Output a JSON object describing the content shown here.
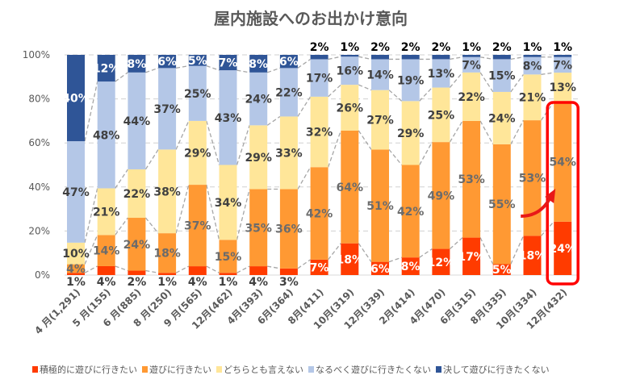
{
  "chart_data": {
    "type": "bar",
    "stacked": "percent",
    "title": "屋内施設へのお出かけ意向",
    "xlabel": "",
    "ylabel": "",
    "ylim": [
      0,
      100
    ],
    "yticks": [
      "0%",
      "20%",
      "40%",
      "60%",
      "80%",
      "100%"
    ],
    "grid": true,
    "legend_position": "bottom",
    "categories": [
      "4 月(1,291)",
      "5 月(155)",
      "6 月(885)",
      "8 月(250)",
      "9 月(565)",
      "12月(462)",
      "4月(393)",
      "6月(364)",
      "8月(411)",
      "10月(319)",
      "12月(339)",
      "2月(414)",
      "4月(470)",
      "6月(315)",
      "8月(335)",
      "10月(334)",
      "12月(432)"
    ],
    "series": [
      {
        "name": "積極的に遊びに行きたい",
        "color": "#FF3B00",
        "values": [
          1,
          4,
          2,
          1,
          4,
          1,
          4,
          3,
          7,
          18,
          6,
          8,
          12,
          17,
          5,
          18,
          24
        ]
      },
      {
        "name": "遊びに行きたい",
        "color": "#FF9933",
        "values": [
          4,
          14,
          24,
          18,
          37,
          15,
          35,
          36,
          42,
          64,
          51,
          42,
          49,
          53,
          55,
          53,
          54
        ]
      },
      {
        "name": "どちらとも言えない",
        "color": "#FFE699",
        "values": [
          10,
          21,
          22,
          38,
          29,
          34,
          29,
          33,
          32,
          26,
          27,
          29,
          25,
          22,
          24,
          21,
          13
        ]
      },
      {
        "name": "なるべく遊びに行きたくない",
        "color": "#B4C7E7",
        "values": [
          47,
          48,
          44,
          37,
          25,
          43,
          24,
          22,
          17,
          16,
          14,
          19,
          13,
          7,
          15,
          8,
          7
        ]
      },
      {
        "name": "決して遊びに行きたくない",
        "color": "#2F5597",
        "values": [
          40,
          12,
          8,
          6,
          5,
          7,
          8,
          6,
          2,
          1,
          2,
          2,
          2,
          1,
          2,
          1,
          1
        ]
      }
    ],
    "annotations": [
      {
        "type": "highlight-box",
        "category": "12月(432)",
        "color": "#FF0000"
      },
      {
        "type": "arrow",
        "target": "12月(432)",
        "color": "#FF0000"
      }
    ]
  }
}
